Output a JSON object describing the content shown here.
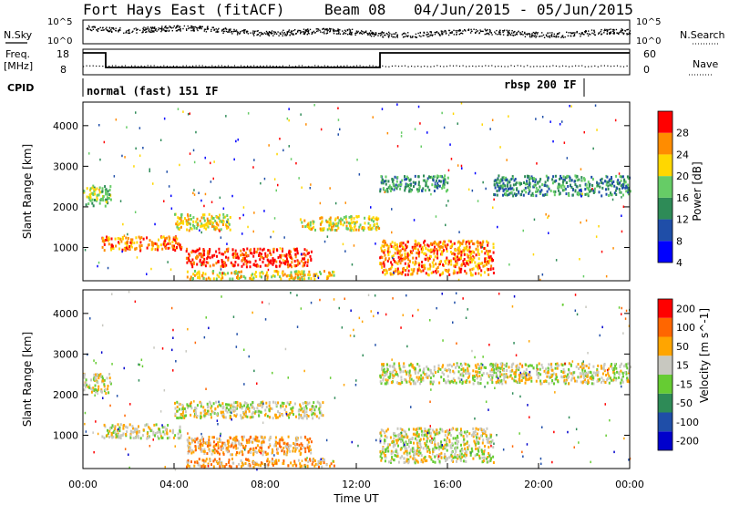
{
  "header": {
    "title": "Fort Hays East (fitACF)",
    "beam": "Beam 08",
    "date_range": "04/Jun/2015 - 05/Jun/2015"
  },
  "top_panels": {
    "nsky_label": "N.Sky",
    "nsearch_label": "N.Search",
    "nsky_ticks": [
      "10^5",
      "10^0"
    ],
    "nsearch_ticks": [
      "10^5",
      "10^0"
    ],
    "freq_label_line1": "Freq.",
    "freq_label_line2": "[MHz]",
    "freq_ticks": [
      "18",
      "8"
    ],
    "nave_label": "Nave",
    "nave_ticks": [
      "60",
      "0"
    ],
    "cpid_label": "CPID",
    "cpid_mode_1": "normal (fast) 151 IF",
    "cpid_mode_2": "rbsp 200 IF"
  },
  "chart_data": [
    {
      "type": "heatmap",
      "name": "power",
      "ylabel": "Slant Range [km]",
      "ylim": [
        180,
        4580
      ],
      "yticks": [
        "4000",
        "3000",
        "2000",
        "1000"
      ],
      "xlim_hours": [
        0,
        24
      ],
      "colorbar": {
        "label": "Power [dB]",
        "ticks": [
          "28",
          "24",
          "20",
          "16",
          "12",
          "8",
          "4"
        ],
        "colors": [
          "#0000ff",
          "#1f4ea8",
          "#2e8b57",
          "#66cc66",
          "#ffd700",
          "#ff8c00",
          "#ff0000"
        ]
      },
      "echo_regions": [
        {
          "t0": 0.0,
          "t1": 1.2,
          "r0": 2050,
          "r1": 2550,
          "level": 3
        },
        {
          "t0": 0.8,
          "t1": 4.3,
          "r0": 950,
          "r1": 1300,
          "level": 5
        },
        {
          "t0": 4.0,
          "t1": 6.5,
          "r0": 1450,
          "r1": 1850,
          "level": 4
        },
        {
          "t0": 4.5,
          "t1": 10.0,
          "r0": 550,
          "r1": 1000,
          "level": 6
        },
        {
          "t0": 4.5,
          "t1": 11.0,
          "r0": 250,
          "r1": 450,
          "level": 4
        },
        {
          "t0": 9.5,
          "t1": 13.0,
          "r0": 1450,
          "r1": 1800,
          "level": 4
        },
        {
          "t0": 13.0,
          "t1": 18.0,
          "r0": 350,
          "r1": 1200,
          "level": 5
        },
        {
          "t0": 13.0,
          "t1": 16.0,
          "r0": 2400,
          "r1": 2800,
          "level": 2
        },
        {
          "t0": 18.0,
          "t1": 24.0,
          "r0": 2300,
          "r1": 2800,
          "level": 2
        }
      ]
    },
    {
      "type": "heatmap",
      "name": "velocity",
      "ylabel": "Slant Range [km]",
      "ylim": [
        180,
        4580
      ],
      "yticks": [
        "4000",
        "3000",
        "2000",
        "1000"
      ],
      "xlim_hours": [
        0,
        24
      ],
      "xticks": [
        "00:00",
        "04:00",
        "08:00",
        "12:00",
        "16:00",
        "20:00",
        "00:00"
      ],
      "xlabel": "Time UT",
      "colorbar": {
        "label": "Velocity [m s^-1]",
        "ticks": [
          "200",
          "100",
          "50",
          "15",
          "-15",
          "-50",
          "-100",
          "-200"
        ],
        "colors": [
          "#0000cc",
          "#1f4ea8",
          "#2e8b57",
          "#66cc33",
          "#c8c8c0",
          "#ffa500",
          "#ff6600",
          "#ff0000"
        ]
      },
      "echo_regions": [
        {
          "t0": 0.0,
          "t1": 1.2,
          "r0": 2050,
          "r1": 2550,
          "level": 4
        },
        {
          "t0": 0.8,
          "t1": 4.3,
          "r0": 950,
          "r1": 1300,
          "level": 4
        },
        {
          "t0": 4.0,
          "t1": 10.5,
          "r0": 1450,
          "r1": 1850,
          "level": 4
        },
        {
          "t0": 4.5,
          "t1": 10.0,
          "r0": 550,
          "r1": 1000,
          "level": 5
        },
        {
          "t0": 4.5,
          "t1": 11.0,
          "r0": 250,
          "r1": 450,
          "level": 5
        },
        {
          "t0": 13.0,
          "t1": 18.0,
          "r0": 350,
          "r1": 1200,
          "level": 4
        },
        {
          "t0": 13.0,
          "t1": 24.0,
          "r0": 2300,
          "r1": 2800,
          "level": 4
        }
      ]
    }
  ]
}
